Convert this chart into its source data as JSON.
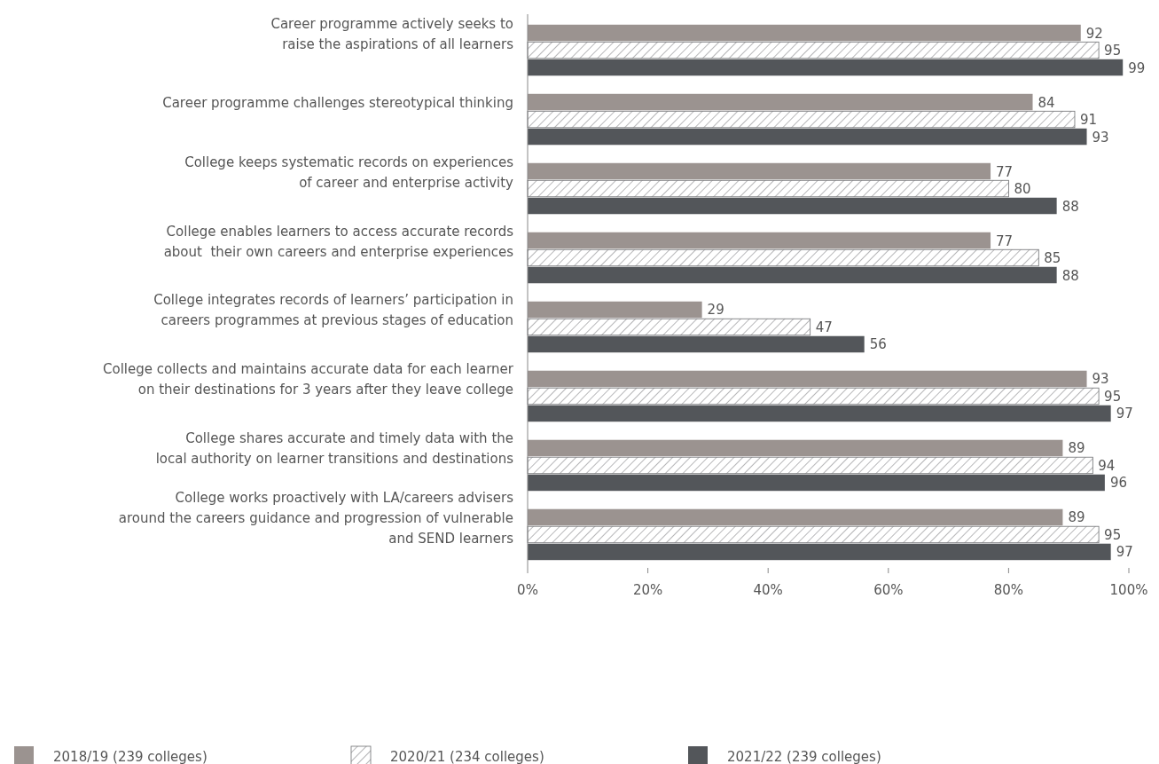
{
  "chart_data": {
    "type": "bar",
    "orientation": "horizontal",
    "categories": [
      "Career programme actively seeks to\nraise the aspirations of all learners",
      "Career programme challenges stereotypical thinking",
      "College keeps systematic records on experiences\nof career and enterprise activity",
      "College enables learners to access accurate records\nabout  their own careers and enterprise experiences",
      "College integrates records of learners’ participation in\ncareers programmes at previous stages of education",
      "College collects and maintains accurate data for each learner\non their destinations for 3 years after they leave college",
      "College shares accurate and timely data with the\nlocal authority on learner transitions and destinations",
      "College works proactively with LA/careers advisers\naround the careers guidance and progression of vulnerable\nand SEND learners"
    ],
    "series": [
      {
        "name": "2018/19 (239 colleges)",
        "color": "#9b9390",
        "values": [
          92,
          84,
          77,
          77,
          29,
          93,
          89,
          89
        ]
      },
      {
        "name": "2020/21 (234 colleges)",
        "color": "#6d6e71",
        "values": [
          95,
          91,
          80,
          85,
          47,
          95,
          94,
          95
        ]
      },
      {
        "name": "2021/22 (239 colleges)",
        "color": "#53565a",
        "values": [
          99,
          93,
          88,
          88,
          56,
          97,
          96,
          97
        ]
      }
    ],
    "xlim": [
      0,
      100
    ],
    "xticks": [
      {
        "value": 0,
        "label": "0%"
      },
      {
        "value": 20,
        "label": "20%"
      },
      {
        "value": 40,
        "label": "40%"
      },
      {
        "value": 60,
        "label": "60%"
      },
      {
        "value": 80,
        "label": "80%"
      },
      {
        "value": 100,
        "label": "100%"
      }
    ],
    "data_labels": true,
    "legend": "bottom left",
    "grid": false
  }
}
